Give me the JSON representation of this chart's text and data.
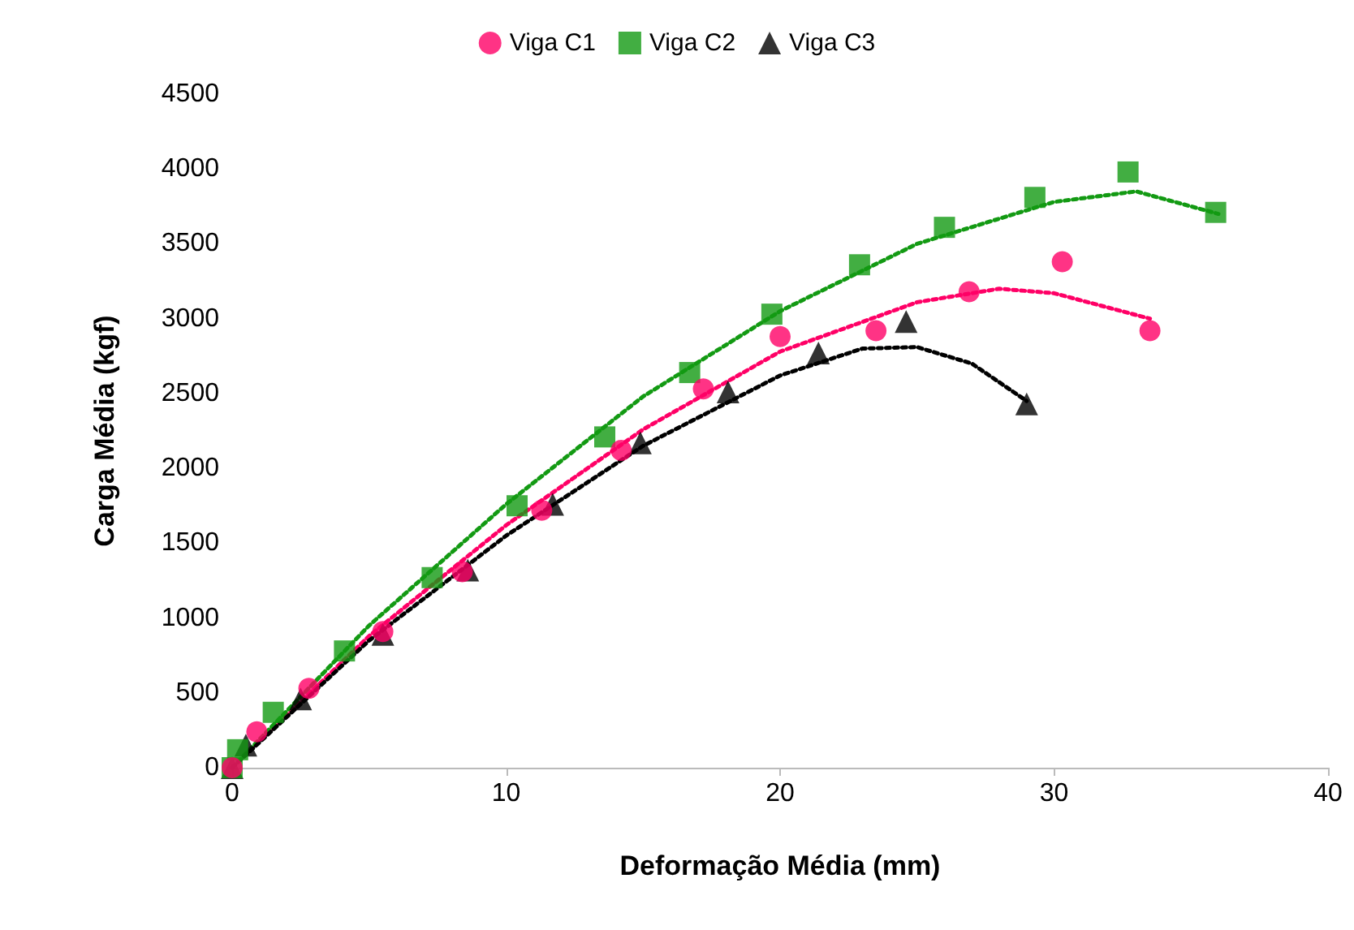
{
  "chart_data": {
    "type": "scatter",
    "xlabel": "Deformação Média (mm)",
    "ylabel": "Carga Média (kgf)",
    "xlim": [
      0,
      40
    ],
    "xticks": [
      0,
      10,
      20,
      30,
      40
    ],
    "ylim": [
      0,
      4500
    ],
    "yticks": [
      0,
      500,
      1000,
      1500,
      2000,
      2500,
      3000,
      3500,
      4000,
      4500
    ],
    "grid": false,
    "legend": "top",
    "series": [
      {
        "name": "Viga C1",
        "color": "#ff0066",
        "marker": "circle",
        "x": [
          0,
          0.9,
          2.8,
          5.5,
          8.4,
          11.3,
          14.2,
          17.2,
          20.0,
          23.5,
          26.9,
          30.3,
          33.5
        ],
        "values": [
          0,
          240,
          530,
          910,
          1310,
          1720,
          2120,
          2530,
          2880,
          2920,
          3180,
          3380,
          2920
        ]
      },
      {
        "name": "Viga C2",
        "color": "#139a13",
        "marker": "square",
        "x": [
          0,
          0.2,
          1.5,
          4.1,
          7.3,
          10.4,
          13.6,
          16.7,
          19.7,
          22.9,
          26.0,
          29.3,
          32.7,
          35.9
        ],
        "values": [
          0,
          120,
          370,
          780,
          1270,
          1750,
          2210,
          2640,
          3030,
          3360,
          3610,
          3810,
          3980,
          3710
        ]
      },
      {
        "name": "Viga C3",
        "color": "#000000",
        "marker": "triangle",
        "x": [
          0,
          0.5,
          2.5,
          5.5,
          8.6,
          11.7,
          14.9,
          18.1,
          21.4,
          24.6,
          29.0
        ],
        "values": [
          0,
          150,
          460,
          890,
          1320,
          1760,
          2170,
          2510,
          2770,
          2980,
          2430
        ]
      },
      {
        "type": "line",
        "color": "#ff0066",
        "line_style": "dotted",
        "marker": "none",
        "x": [
          0,
          5,
          10,
          15,
          20,
          25,
          28,
          30,
          33.5
        ],
        "values": [
          0,
          880,
          1620,
          2260,
          2780,
          3110,
          3200,
          3170,
          3000
        ]
      },
      {
        "type": "line",
        "color": "#139a13",
        "line_style": "dotted",
        "marker": "none",
        "x": [
          0,
          5,
          10,
          15,
          20,
          25,
          30,
          33,
          36
        ],
        "values": [
          0,
          950,
          1760,
          2480,
          3050,
          3500,
          3780,
          3850,
          3700
        ]
      },
      {
        "type": "line",
        "color": "#000000",
        "line_style": "dotted",
        "marker": "none",
        "x": [
          0,
          5,
          10,
          15,
          20,
          23,
          25,
          27,
          29
        ],
        "values": [
          0,
          850,
          1550,
          2150,
          2620,
          2800,
          2810,
          2700,
          2450
        ]
      }
    ]
  }
}
